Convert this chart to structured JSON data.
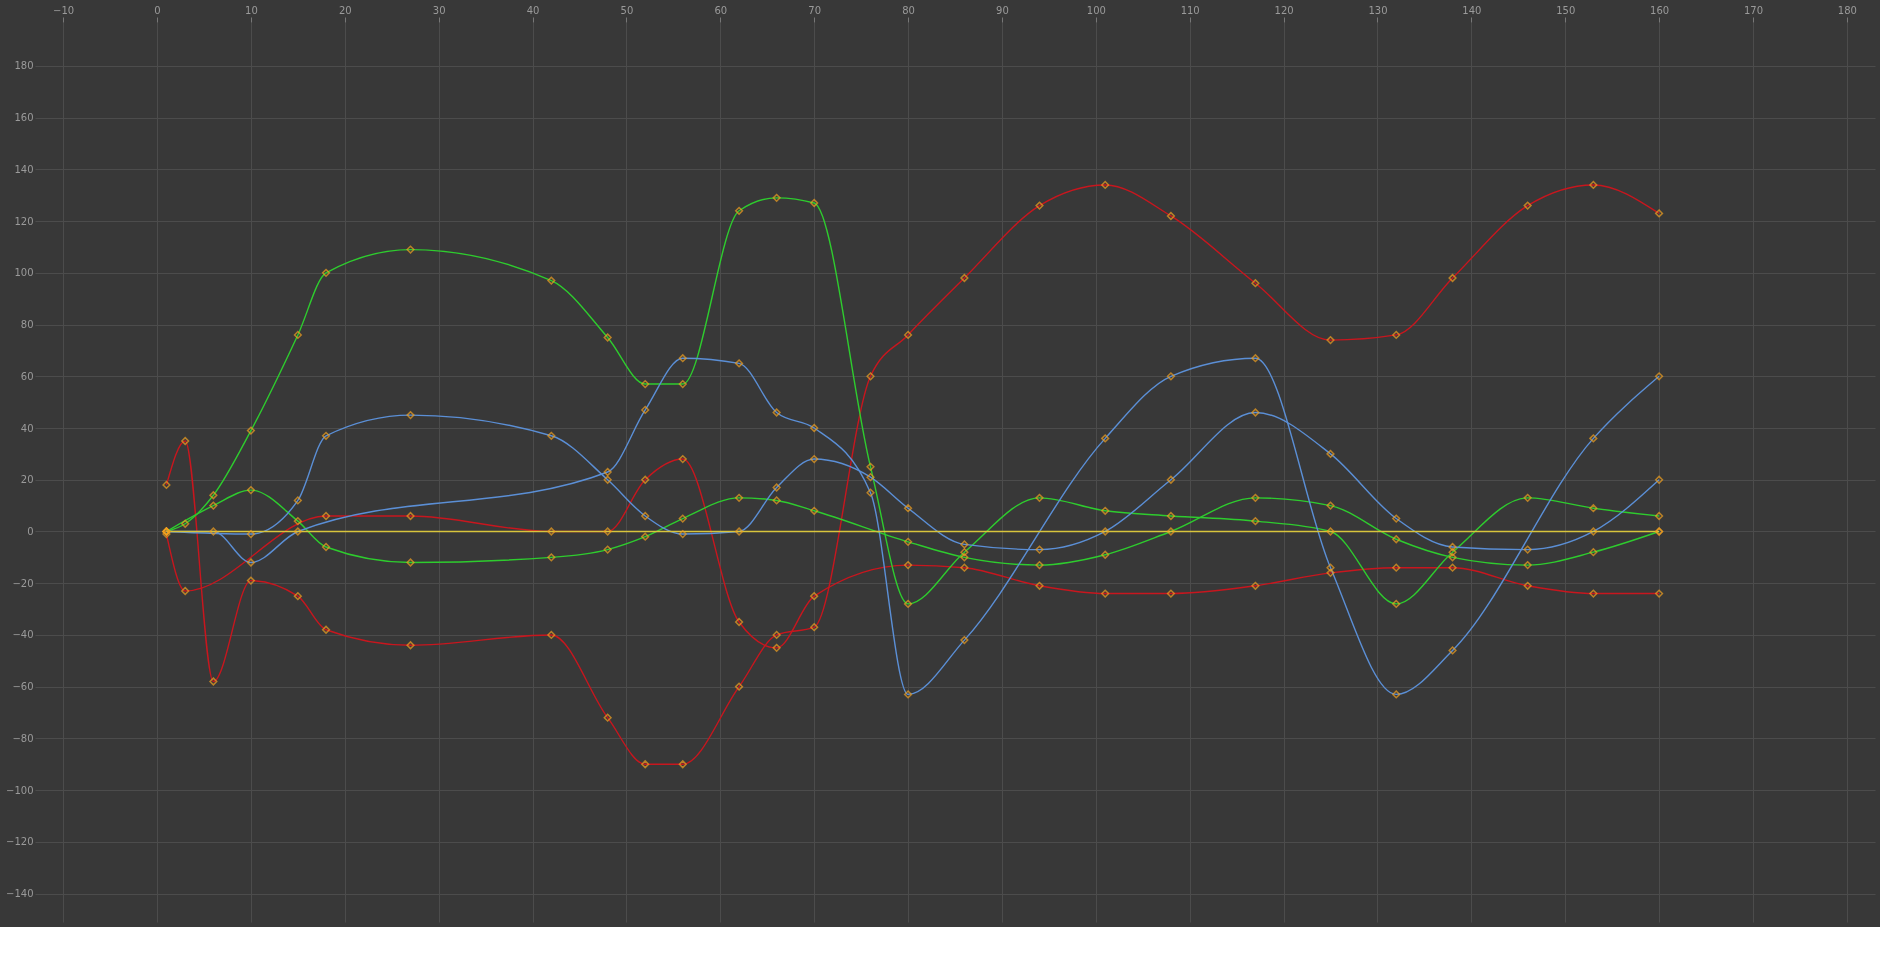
{
  "chart_data": {
    "type": "line",
    "marker": "diamond",
    "line_style": "solid",
    "grid": true,
    "legend": false,
    "xlim": [
      -13,
      183
    ],
    "xticks": [
      -10,
      0,
      10,
      20,
      30,
      40,
      50,
      60,
      70,
      80,
      90,
      100,
      110,
      120,
      130,
      140,
      150,
      160,
      170,
      180
    ],
    "ylim": [
      -151,
      197
    ],
    "yticks": [
      -140,
      -120,
      -100,
      -80,
      -60,
      -40,
      -20,
      0,
      20,
      40,
      60,
      80,
      100,
      120,
      140,
      160,
      180
    ],
    "series": [
      {
        "color": "#c8161e",
        "x": [
          1,
          3,
          6,
          10,
          15,
          18,
          27,
          42,
          48,
          52,
          56,
          62,
          66,
          70,
          76,
          80,
          86,
          94,
          101,
          108,
          117,
          125,
          132,
          138,
          146,
          153,
          160
        ],
        "values": [
          18,
          35,
          -58,
          -19,
          -25,
          -38,
          -44,
          -40,
          -72,
          -90,
          -90,
          -60,
          -40,
          -37,
          60,
          76,
          98,
          126,
          134,
          122,
          96,
          74,
          76,
          98,
          126,
          134,
          123
        ]
      },
      {
        "color": "#c8161e",
        "x": [
          1,
          3,
          18,
          27,
          42,
          48,
          52,
          56,
          62,
          66,
          70,
          80,
          86,
          94,
          101,
          108,
          117,
          125,
          132,
          138,
          146,
          153,
          160
        ],
        "values": [
          -1,
          -23,
          6,
          6,
          0,
          0,
          20,
          28,
          -35,
          -45,
          -25,
          -13,
          -14,
          -21,
          -24,
          -24,
          -21,
          -16,
          -14,
          -14,
          -21,
          -24,
          -24
        ]
      },
      {
        "color": "#2ecc2e",
        "x": [
          1,
          3,
          6,
          10,
          15,
          18,
          27,
          42,
          48,
          52,
          56,
          62,
          66,
          70,
          76,
          80,
          86,
          94,
          101,
          108,
          117,
          125,
          132,
          138,
          146,
          153,
          160
        ],
        "values": [
          0,
          3,
          14,
          39,
          76,
          100,
          109,
          97,
          75,
          57,
          57,
          124,
          129,
          127,
          25,
          -28,
          -8,
          13,
          8,
          6,
          4,
          0,
          -28,
          -8,
          13,
          9,
          6
        ]
      },
      {
        "color": "#2ecc2e",
        "x": [
          1,
          6,
          10,
          15,
          18,
          27,
          42,
          48,
          52,
          56,
          62,
          66,
          70,
          80,
          86,
          94,
          101,
          108,
          117,
          125,
          132,
          138,
          146,
          153,
          160
        ],
        "values": [
          0,
          10,
          16,
          4,
          -6,
          -12,
          -10,
          -7,
          -2,
          5,
          13,
          12,
          8,
          -4,
          -10,
          -13,
          -9,
          0,
          13,
          10,
          -3,
          -10,
          -13,
          -8,
          0
        ]
      },
      {
        "color": "#5b8fd6",
        "x": [
          1,
          10,
          15,
          18,
          27,
          42,
          48,
          52,
          56,
          62,
          66,
          70,
          76,
          80,
          86,
          94,
          101,
          108,
          117,
          125,
          132,
          138,
          146,
          153,
          160
        ],
        "values": [
          0,
          -1,
          12,
          37,
          45,
          37,
          20,
          6,
          -1,
          0,
          17,
          28,
          21,
          9,
          -5,
          -7,
          0,
          20,
          46,
          30,
          5,
          -6,
          -7,
          0,
          20
        ]
      },
      {
        "color": "#5b8fd6",
        "x": [
          1,
          6,
          10,
          15,
          48,
          52,
          56,
          62,
          66,
          70,
          76,
          80,
          86,
          101,
          108,
          117,
          125,
          132,
          138,
          153,
          160
        ],
        "values": [
          0,
          0,
          -12,
          0,
          23,
          47,
          67,
          65,
          46,
          40,
          15,
          -63,
          -42,
          36,
          60,
          67,
          -14,
          -63,
          -46,
          36,
          60
        ]
      },
      {
        "color": "#d8c43c",
        "x": [
          1,
          160
        ],
        "values": [
          0,
          0
        ]
      }
    ]
  }
}
